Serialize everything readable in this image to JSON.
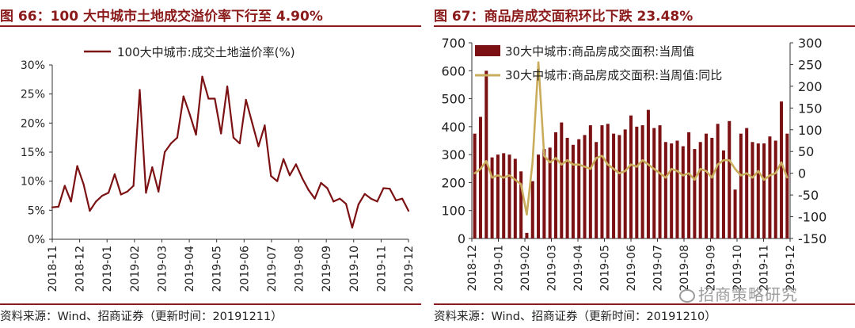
{
  "left": {
    "title": "图 66：100 大中城市土地成交溢价率下行至 4.90%",
    "source": "资料来源：Wind、招商证券（更新时间：20191211）"
  },
  "right": {
    "title": "图 67：商品房成交面积环比下跌 23.48%",
    "source": "资料来源：Wind、招商证券（更新时间：20191210）"
  },
  "watermark": "招商策略研究",
  "chart_data": [
    {
      "type": "line",
      "legend": [
        "100大中城市:成交土地溢价率(%)"
      ],
      "legend_position": "top",
      "ylim": [
        0,
        30
      ],
      "yticks": [
        "0%",
        "5%",
        "10%",
        "15%",
        "20%",
        "25%",
        "30%"
      ],
      "xticks": [
        "2018-11",
        "2018-12",
        "2019-01",
        "2019-02",
        "2019-03",
        "2019-04",
        "2019-05",
        "2019-06",
        "2019-07",
        "2019-08",
        "2019-09",
        "2019-10",
        "2019-11",
        "2019-12"
      ],
      "grid": false,
      "color": "#7B1113",
      "series": [
        {
          "name": "100大中城市:成交土地溢价率(%)",
          "values": [
            5.5,
            5.6,
            9.2,
            6.5,
            12.6,
            9.5,
            4.9,
            6.5,
            7.5,
            8.0,
            11.2,
            7.7,
            8.2,
            9.2,
            25.7,
            8.0,
            12.4,
            8.2,
            15.0,
            16.5,
            17.5,
            24.6,
            21.5,
            18.0,
            28.0,
            24.2,
            24.2,
            18.2,
            26.3,
            17.5,
            16.5,
            24.0,
            20.0,
            16.0,
            19.6,
            10.9,
            10.0,
            13.8,
            11.0,
            12.9,
            10.5,
            8.5,
            7.0,
            9.7,
            8.8,
            6.5,
            7.0,
            6.1,
            2.0,
            6.0,
            7.8,
            7.0,
            6.5,
            8.8,
            8.7,
            6.7,
            7.0,
            4.9
          ]
        }
      ]
    },
    {
      "type": "bar+line",
      "legend": [
        "30大中城市:商品房成交面积:当周值",
        "30大中城市:商品房成交面积:当周值:同比"
      ],
      "legend_position": "top",
      "ylim_left": [
        0,
        700
      ],
      "yticks_left": [
        "0",
        "100",
        "200",
        "300",
        "400",
        "500",
        "600",
        "700"
      ],
      "ylim_right": [
        -150,
        300
      ],
      "yticks_right": [
        "-150",
        "-100",
        "-50",
        "0",
        "50",
        "100",
        "150",
        "200",
        "250",
        "300"
      ],
      "xticks": [
        "2018-12",
        "2019-01",
        "2019-02",
        "2019-03",
        "2019-04",
        "2019-05",
        "2019-06",
        "2019-07",
        "2019-08",
        "2019-09",
        "2019-10",
        "2019-11",
        "2019-12"
      ],
      "grid": false,
      "bar_color": "#7B1113",
      "line_color": "#C9AC5C",
      "series": [
        {
          "name": "30大中城市:商品房成交面积:当周值",
          "values": [
            375,
            435,
            600,
            290,
            300,
            305,
            300,
            285,
            240,
            20,
            205,
            300,
            320,
            325,
            380,
            415,
            360,
            335,
            355,
            370,
            405,
            345,
            405,
            410,
            375,
            370,
            390,
            440,
            400,
            405,
            460,
            395,
            405,
            345,
            340,
            350,
            330,
            380,
            320,
            345,
            375,
            360,
            410,
            315,
            420,
            175,
            375,
            395,
            345,
            340,
            340,
            365,
            350,
            490,
            375
          ]
        },
        {
          "name": "30大中城市:商品房成交面积:当周值:同比",
          "values": [
            0,
            10,
            28,
            -10,
            -5,
            -10,
            -5,
            -15,
            -25,
            -95,
            25,
            255,
            40,
            25,
            35,
            20,
            30,
            20,
            20,
            15,
            10,
            35,
            40,
            20,
            10,
            0,
            5,
            20,
            15,
            30,
            20,
            10,
            0,
            -10,
            10,
            5,
            -5,
            0,
            -15,
            10,
            5,
            -10,
            20,
            30,
            30,
            10,
            -5,
            0,
            -10,
            5,
            -15,
            -5,
            0,
            25,
            -10
          ]
        }
      ]
    }
  ]
}
